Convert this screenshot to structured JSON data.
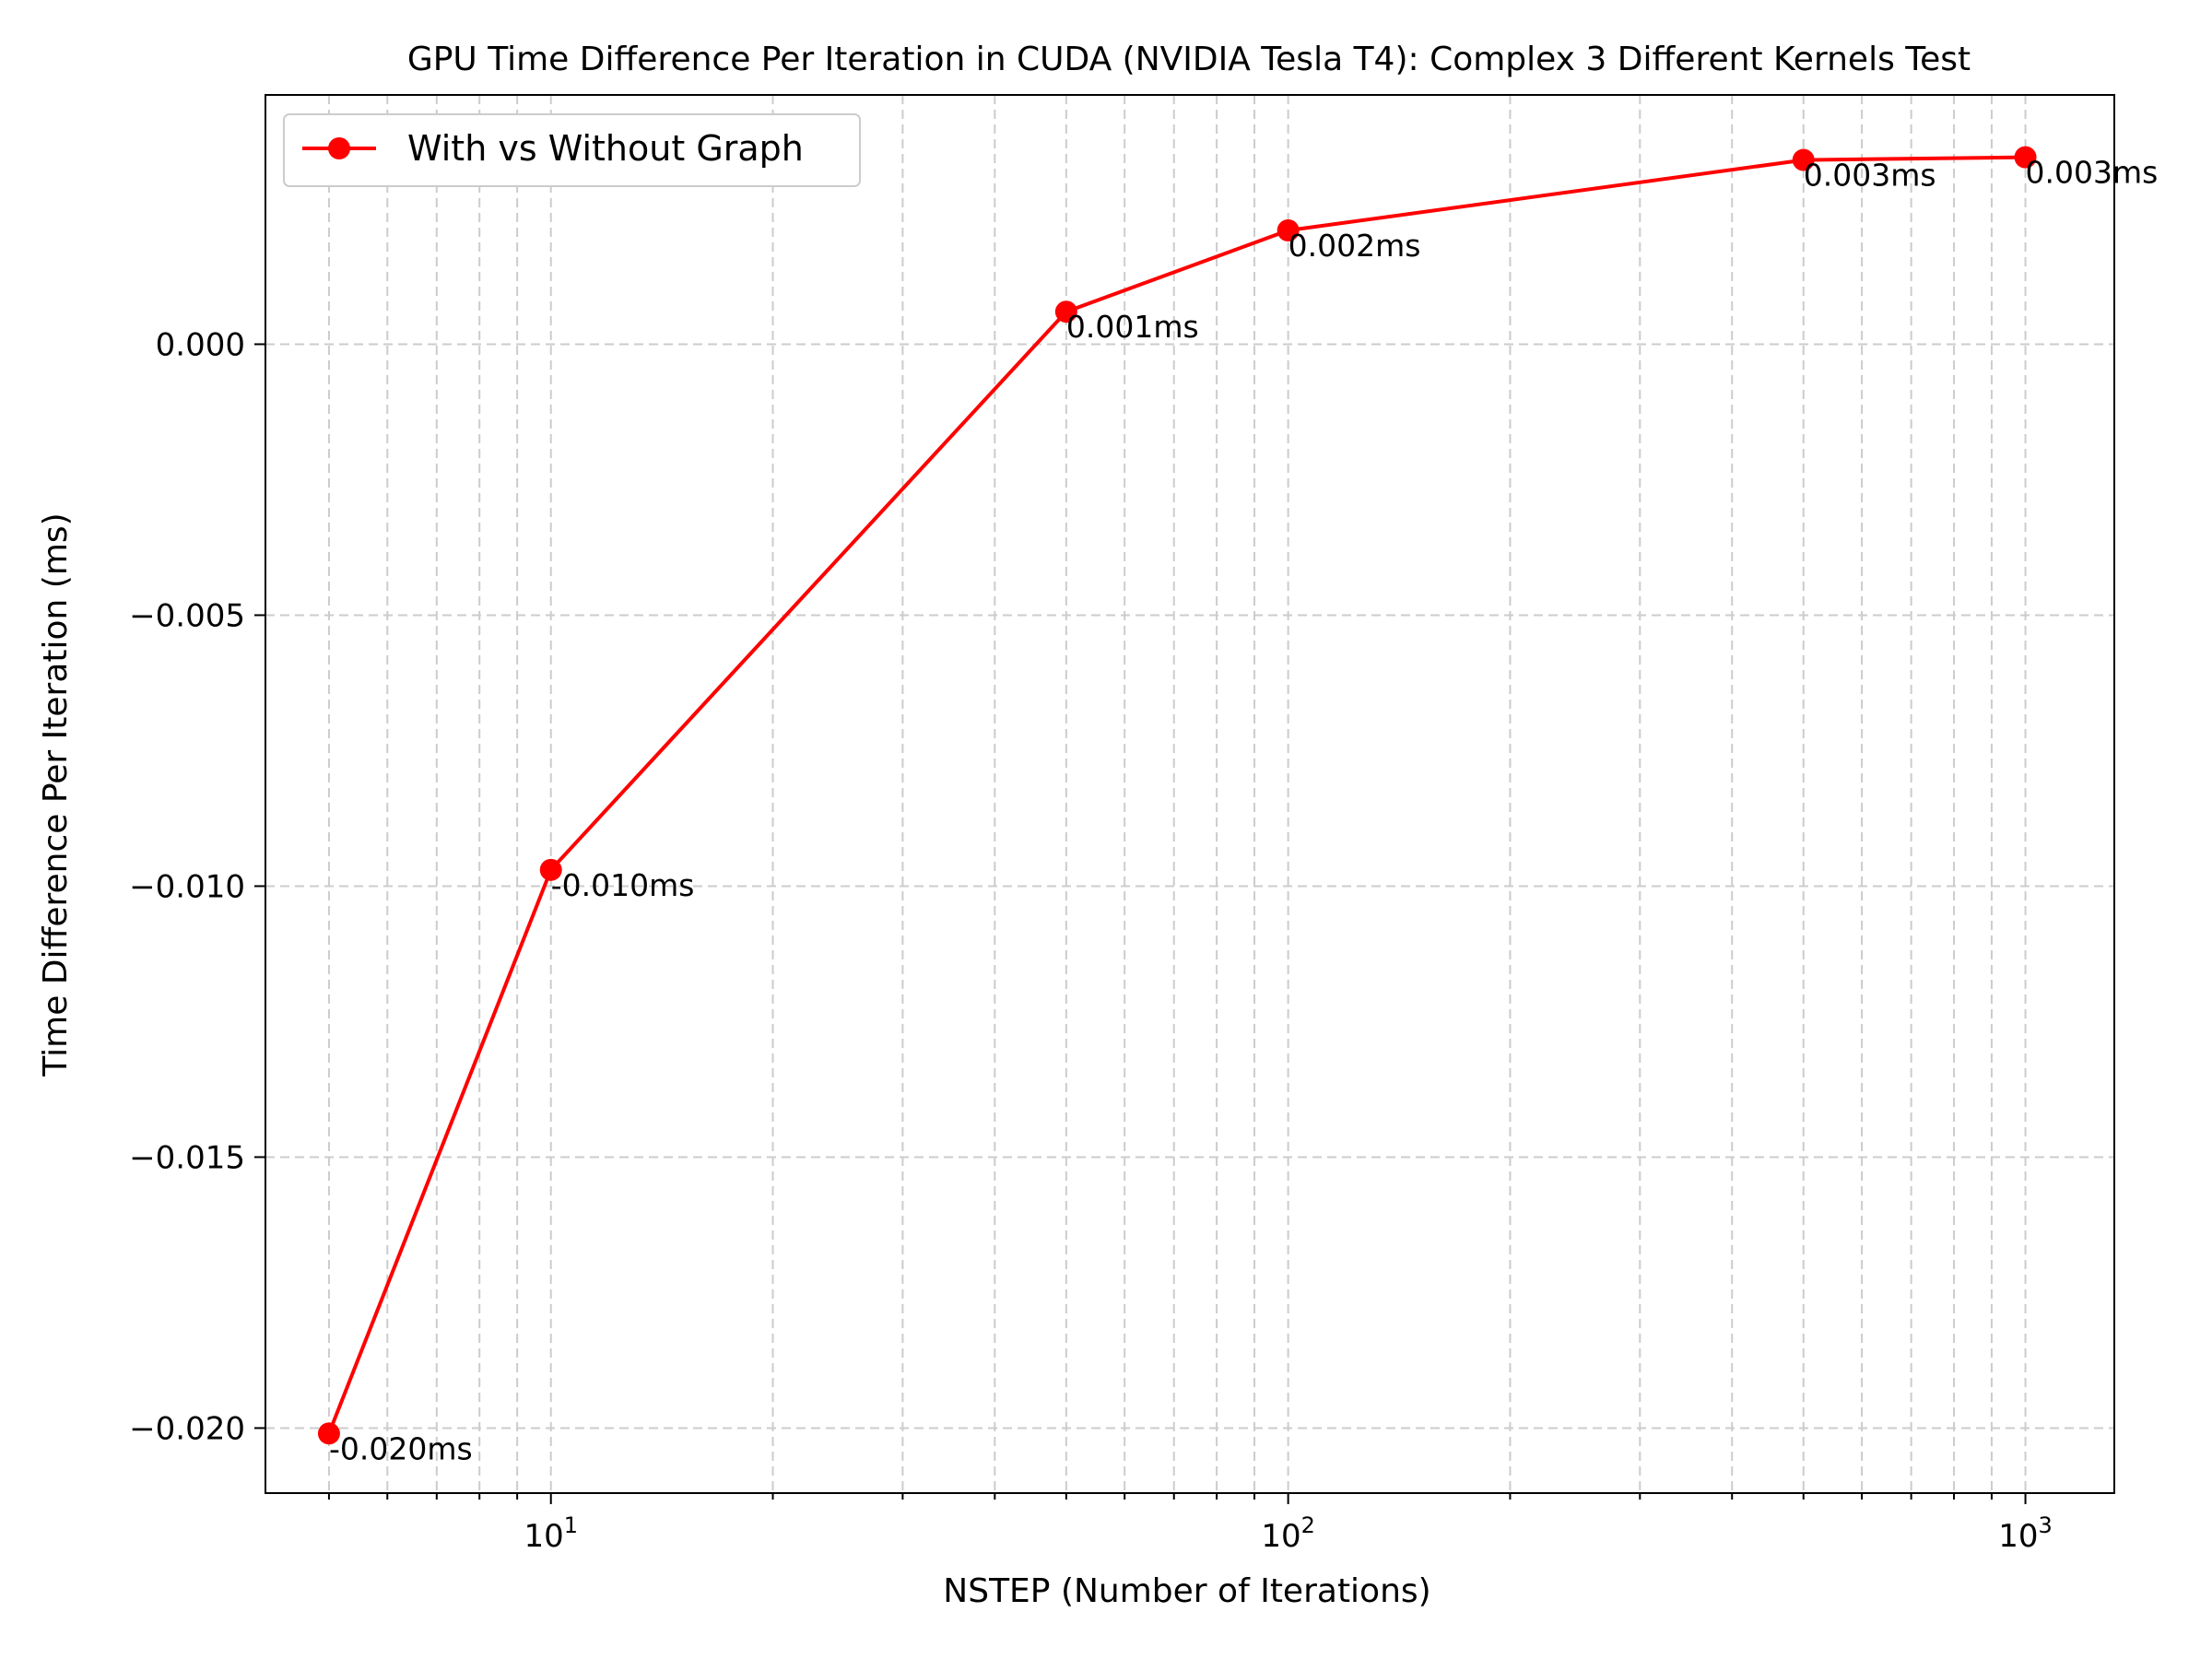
{
  "chart_data": {
    "type": "line",
    "title": "GPU Time Difference Per Iteration in CUDA (NVIDIA Tesla T4): Complex 3 Different Kernels Test",
    "xlabel": "NSTEP (Number of Iterations)",
    "ylabel": "Time Difference Per Iteration (ms)",
    "xscale": "log",
    "xlim": [
      4.1,
      1320
    ],
    "ylim": [
      -0.0212,
      0.0046
    ],
    "grid": true,
    "legend_position": "top-left",
    "x_ticks": [
      {
        "value": 10,
        "base": "10",
        "exp": "1"
      },
      {
        "value": 100,
        "base": "10",
        "exp": "2"
      },
      {
        "value": 1000,
        "base": "10",
        "exp": "3"
      }
    ],
    "y_ticks": [
      {
        "value": 0.0,
        "label": "0.000"
      },
      {
        "value": -0.005,
        "label": "−0.005"
      },
      {
        "value": -0.01,
        "label": "−0.010"
      },
      {
        "value": -0.015,
        "label": "−0.015"
      },
      {
        "value": -0.02,
        "label": "−0.020"
      }
    ],
    "series": [
      {
        "name": "With vs Without Graph",
        "color": "#ff0000",
        "marker": "circle",
        "x": [
          5,
          10,
          50,
          100,
          500,
          1000
        ],
        "y": [
          -0.0201,
          -0.0097,
          0.0006,
          0.0021,
          0.0034,
          0.00345
        ],
        "labels": [
          "-0.020ms",
          "-0.010ms",
          "0.001ms",
          "0.002ms",
          "0.003ms",
          "0.003ms"
        ]
      }
    ]
  }
}
